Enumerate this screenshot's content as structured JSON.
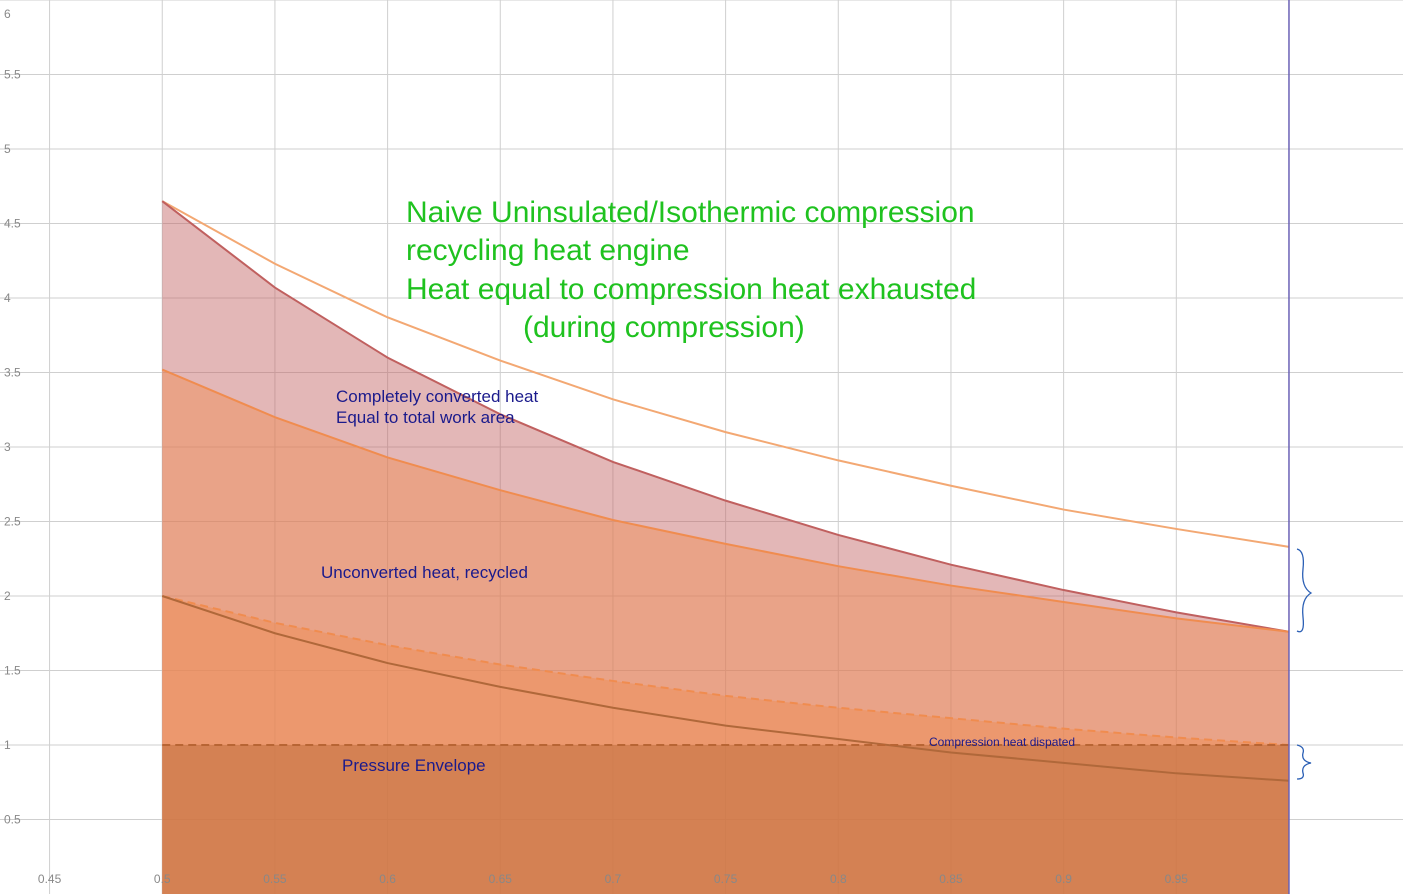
{
  "chart_data": {
    "type": "area",
    "title_lines": [
      "Naive Uninsulated/Isothermic compression",
      "recycling heat engine",
      "Heat equal to compression heat exhausted",
      "(during compression)"
    ],
    "annotations": [
      "Completely converted heat",
      "Equal to total work area",
      "Unconverted heat, recycled",
      "Pressure Envelope",
      "Compression heat dispated"
    ],
    "x": [
      0.5,
      0.55,
      0.6,
      0.65,
      0.7,
      0.75,
      0.8,
      0.85,
      0.9,
      0.95,
      1.0
    ],
    "series": [
      {
        "color": "#f3a873",
        "fill": false,
        "dashed": false,
        "values": [
          4.65,
          4.23,
          3.87,
          3.58,
          3.32,
          3.1,
          2.91,
          2.74,
          2.58,
          2.45,
          2.33
        ]
      },
      {
        "color": "#c0605f",
        "fill": true,
        "dashed": false,
        "values": [
          4.65,
          4.07,
          3.6,
          3.22,
          2.9,
          2.64,
          2.41,
          2.21,
          2.04,
          1.89,
          1.76
        ]
      },
      {
        "color": "#f08c4f",
        "fill": true,
        "dashed": false,
        "values": [
          3.52,
          3.2,
          2.93,
          2.71,
          2.51,
          2.35,
          2.2,
          2.07,
          1.96,
          1.85,
          1.76
        ]
      },
      {
        "color": "#f08c4f",
        "fill": true,
        "dashed": true,
        "values": [
          2,
          1.82,
          1.67,
          1.54,
          1.43,
          1.33,
          1.25,
          1.18,
          1.11,
          1.05,
          1
        ]
      },
      {
        "color": "#b0683a",
        "fill": false,
        "dashed": false,
        "values": [
          2,
          1.75,
          1.55,
          1.39,
          1.25,
          1.13,
          1.04,
          0.95,
          0.88,
          0.81,
          0.76
        ]
      },
      {
        "color": "#b86534",
        "fill": true,
        "dashed": true,
        "values": [
          1,
          1,
          1,
          1,
          1,
          1,
          1,
          1,
          1,
          1,
          1
        ]
      }
    ],
    "vertical_line": 1.0,
    "vertical_line_color": "#6b62b5",
    "xlim": [
      0.428,
      1.0506
    ],
    "ylim": [
      0,
      6
    ],
    "xticks": [
      0.45,
      0.5,
      0.55,
      0.6,
      0.65,
      0.7,
      0.75,
      0.8,
      0.85,
      0.9,
      0.95
    ],
    "yticks": [
      0.5,
      1,
      1.5,
      2,
      2.5,
      3,
      3.5,
      4,
      4.5,
      5,
      5.5,
      6
    ],
    "grid": true
  }
}
